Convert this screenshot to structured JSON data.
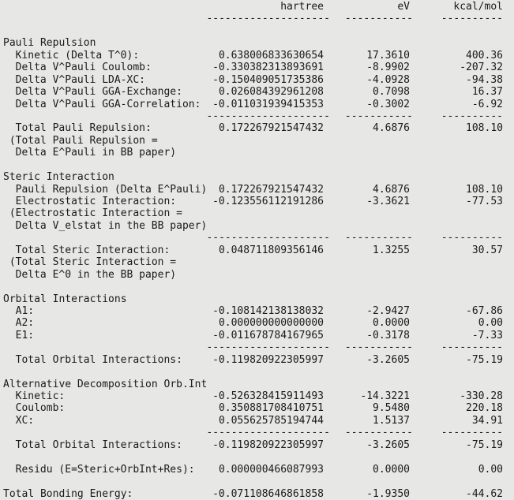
{
  "colors": {
    "background": "#e7e7e5",
    "text": "#1a1a1a"
  },
  "columns": {
    "hartree": "hartree",
    "ev": "eV",
    "kcal": "kcal/mol"
  },
  "separators": {
    "hartree": "--------------------",
    "ev": "-----------",
    "kcal": "----------"
  },
  "rows": [
    {
      "t": "header"
    },
    {
      "t": "dash"
    },
    {
      "t": "blank"
    },
    {
      "t": "text",
      "i": 0,
      "l": "Pauli Repulsion"
    },
    {
      "t": "item",
      "i": 2,
      "l": "Kinetic (Delta T^0):",
      "h": "0.638006833630654",
      "e": "17.3610",
      "k": "400.36"
    },
    {
      "t": "item",
      "i": 2,
      "l": "Delta V^Pauli Coulomb:",
      "h": "-0.330382313893691",
      "e": "-8.9902",
      "k": "-207.32"
    },
    {
      "t": "item",
      "i": 2,
      "l": "Delta V^Pauli LDA-XC:",
      "h": "-0.150409051735386",
      "e": "-4.0928",
      "k": "-94.38"
    },
    {
      "t": "item",
      "i": 2,
      "l": "Delta V^Pauli GGA-Exchange:",
      "h": "0.026084392961208",
      "e": "0.7098",
      "k": "16.37"
    },
    {
      "t": "item",
      "i": 2,
      "l": "Delta V^Pauli GGA-Correlation:",
      "h": "-0.011031939415353",
      "e": "-0.3002",
      "k": "-6.92"
    },
    {
      "t": "dash"
    },
    {
      "t": "item",
      "i": 2,
      "l": "Total Pauli Repulsion:",
      "h": "0.172267921547432",
      "e": "4.6876",
      "k": "108.10"
    },
    {
      "t": "text",
      "i": 1,
      "l": "(Total Pauli Repulsion ="
    },
    {
      "t": "text",
      "i": 2,
      "l": "Delta E^Pauli in BB paper)"
    },
    {
      "t": "blank"
    },
    {
      "t": "text",
      "i": 0,
      "l": "Steric Interaction"
    },
    {
      "t": "item",
      "i": 2,
      "l": "Pauli Repulsion (Delta E^Pauli):",
      "h": "0.172267921547432",
      "e": "4.6876",
      "k": "108.10"
    },
    {
      "t": "item",
      "i": 2,
      "l": "Electrostatic Interaction:",
      "h": "-0.123556112191286",
      "e": "-3.3621",
      "k": "-77.53"
    },
    {
      "t": "text",
      "i": 1,
      "l": "(Electrostatic Interaction ="
    },
    {
      "t": "text",
      "i": 2,
      "l": "Delta V_elstat in the BB paper)"
    },
    {
      "t": "dash"
    },
    {
      "t": "item",
      "i": 2,
      "l": "Total Steric Interaction:",
      "h": "0.048711809356146",
      "e": "1.3255",
      "k": "30.57"
    },
    {
      "t": "text",
      "i": 1,
      "l": "(Total Steric Interaction ="
    },
    {
      "t": "text",
      "i": 2,
      "l": "Delta E^0 in the BB paper)"
    },
    {
      "t": "blank"
    },
    {
      "t": "text",
      "i": 0,
      "l": "Orbital Interactions"
    },
    {
      "t": "item",
      "i": 2,
      "l": "A1:",
      "h": "-0.108142138138032",
      "e": "-2.9427",
      "k": "-67.86"
    },
    {
      "t": "item",
      "i": 2,
      "l": "A2:",
      "h": "0.000000000000000",
      "e": "0.0000",
      "k": "0.00"
    },
    {
      "t": "item",
      "i": 2,
      "l": "E1:",
      "h": "-0.011678784167965",
      "e": "-0.3178",
      "k": "-7.33"
    },
    {
      "t": "dash"
    },
    {
      "t": "item",
      "i": 2,
      "l": "Total Orbital Interactions:",
      "h": "-0.119820922305997",
      "e": "-3.2605",
      "k": "-75.19"
    },
    {
      "t": "blank"
    },
    {
      "t": "text",
      "i": 0,
      "l": "Alternative Decomposition Orb.Int."
    },
    {
      "t": "item",
      "i": 2,
      "l": "Kinetic:",
      "h": "-0.526328415911493",
      "e": "-14.3221",
      "k": "-330.28"
    },
    {
      "t": "item",
      "i": 2,
      "l": "Coulomb:",
      "h": "0.350881708410751",
      "e": "9.5480",
      "k": "220.18"
    },
    {
      "t": "item",
      "i": 2,
      "l": "XC:",
      "h": "0.055625785194744",
      "e": "1.5137",
      "k": "34.91"
    },
    {
      "t": "dash"
    },
    {
      "t": "item",
      "i": 2,
      "l": "Total Orbital Interactions:",
      "h": "-0.119820922305997",
      "e": "-3.2605",
      "k": "-75.19"
    },
    {
      "t": "blank"
    },
    {
      "t": "item",
      "i": 2,
      "l": "Residu (E=Steric+OrbInt+Res):",
      "h": "0.000000466087993",
      "e": "0.0000",
      "k": "0.00"
    },
    {
      "t": "blank"
    },
    {
      "t": "item",
      "i": 0,
      "l": "Total Bonding Energy:",
      "h": "-0.071108646861858",
      "e": "-1.9350",
      "k": "-44.62"
    }
  ]
}
